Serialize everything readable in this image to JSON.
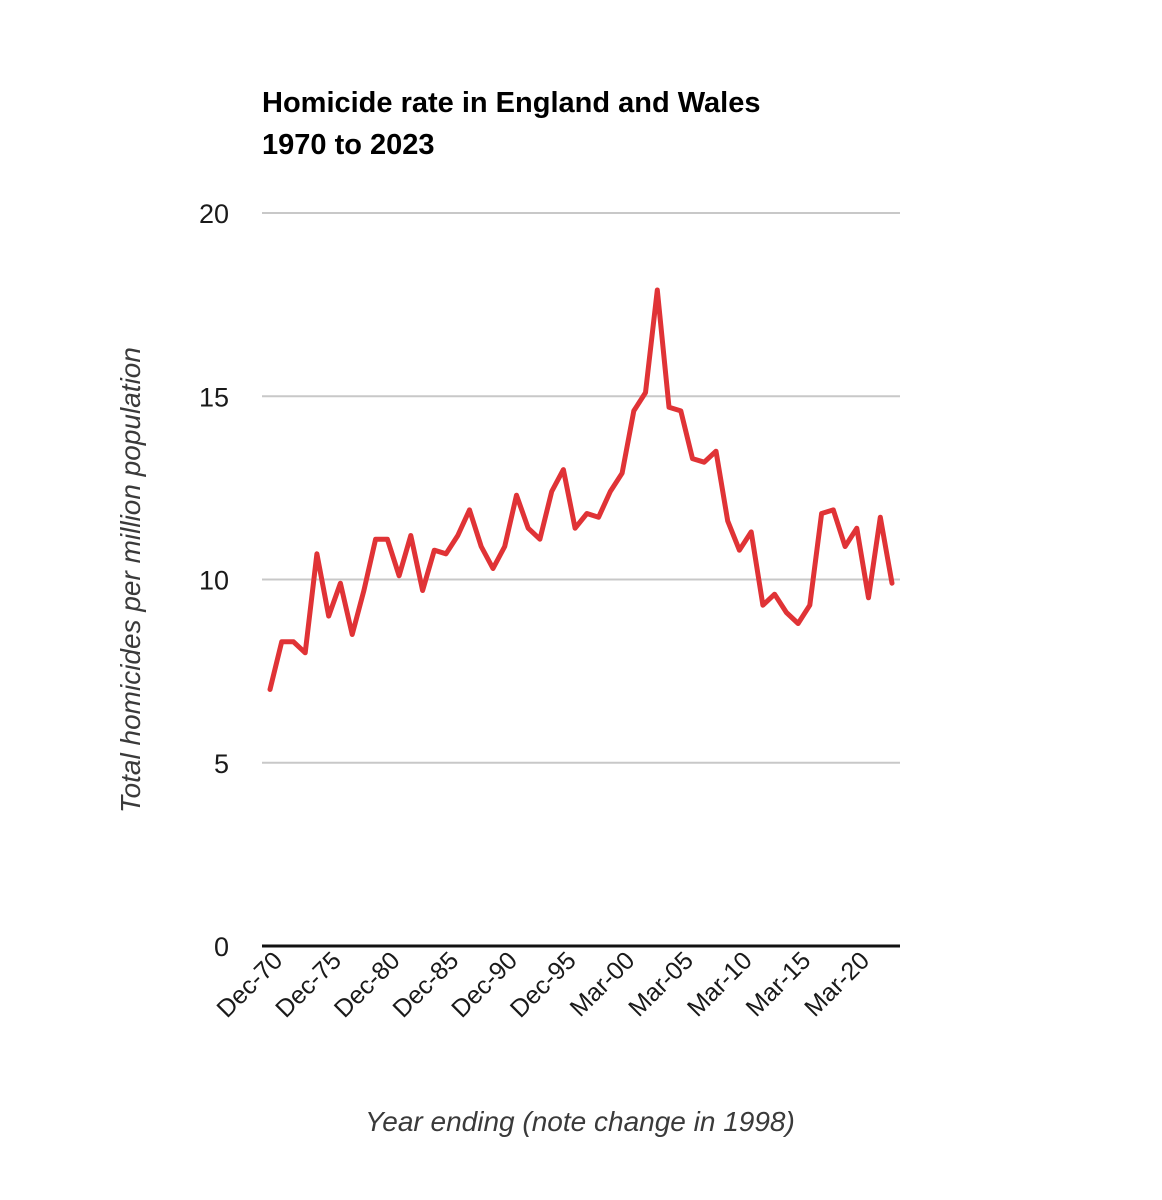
{
  "chart_data": {
    "type": "line",
    "title_lines": [
      "Homicide rate in England and Wales",
      "1970 to 2023"
    ],
    "xlabel": "Year ending (note change in 1998)",
    "ylabel": "Total homicides per million population",
    "ylim": [
      0,
      20
    ],
    "yticks": [
      0,
      5,
      10,
      15,
      20
    ],
    "grid": true,
    "legend": "none",
    "colors": {
      "line": "#e03336",
      "grid": "#c8c8c8",
      "baseline": "#111111"
    },
    "x_tick_labels": [
      {
        "label": "Dec-70",
        "index": 0
      },
      {
        "label": "Dec-75",
        "index": 5
      },
      {
        "label": "Dec-80",
        "index": 10
      },
      {
        "label": "Dec-85",
        "index": 15
      },
      {
        "label": "Dec-90",
        "index": 20
      },
      {
        "label": "Dec-95",
        "index": 25
      },
      {
        "label": "Mar-00",
        "index": 30
      },
      {
        "label": "Mar-05",
        "index": 35
      },
      {
        "label": "Mar-10",
        "index": 40
      },
      {
        "label": "Mar-15",
        "index": 45
      },
      {
        "label": "Mar-20",
        "index": 50
      }
    ],
    "series": [
      {
        "values": [
          7.0,
          8.3,
          8.3,
          8.0,
          10.7,
          9.0,
          9.9,
          8.5,
          9.7,
          11.1,
          11.1,
          10.1,
          11.2,
          9.7,
          10.8,
          10.7,
          11.2,
          11.9,
          10.9,
          10.3,
          10.9,
          12.3,
          11.4,
          11.1,
          12.4,
          13.0,
          11.4,
          11.8,
          11.7,
          12.4,
          12.9,
          14.6,
          15.1,
          17.9,
          14.7,
          14.6,
          13.3,
          13.2,
          13.5,
          11.6,
          10.8,
          11.3,
          9.3,
          9.6,
          9.1,
          8.8,
          9.3,
          11.8,
          11.9,
          10.9,
          11.4,
          9.5,
          11.7,
          9.9
        ]
      }
    ]
  }
}
